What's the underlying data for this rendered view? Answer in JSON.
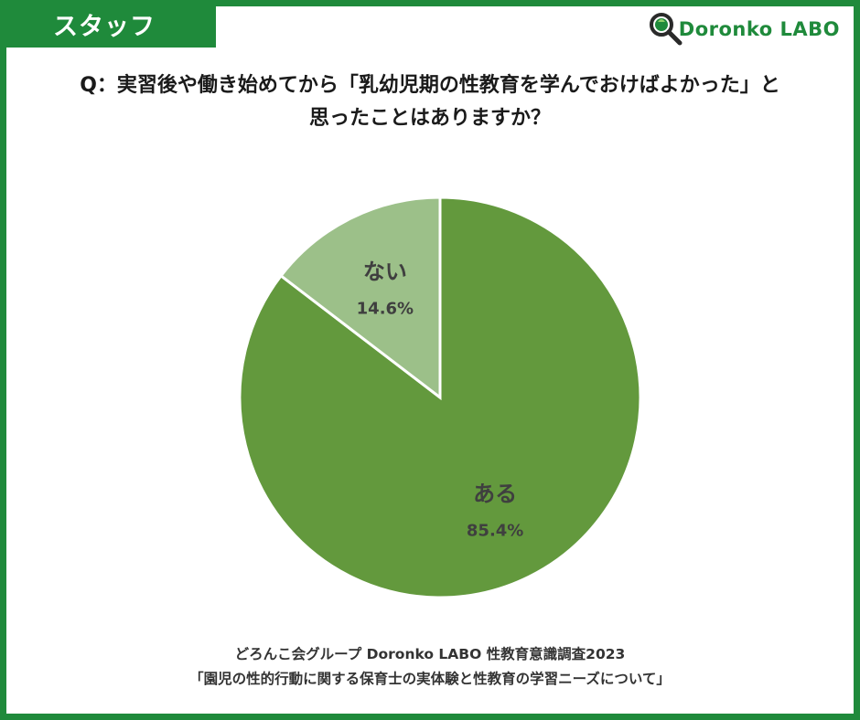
{
  "tag": "スタッフ",
  "logo": {
    "text": "Doronko LABO"
  },
  "question": {
    "line1": "Q：実習後や働き始めてから「乳幼児期の性教育を学んでおけばよかった」と",
    "line2": "思ったことはありますか？"
  },
  "chart_data": {
    "type": "pie",
    "categories": [
      "ある",
      "ない"
    ],
    "values": [
      85.4,
      14.6
    ],
    "value_labels": [
      "85.4%",
      "14.6%"
    ],
    "colors": [
      "#63993d",
      "#9cc089"
    ],
    "start": "12 o'clock, clockwise",
    "legend": "none"
  },
  "source": {
    "line1": "どろんこ会グループ Doronko LABO 性教育意識調査2023",
    "line2": "「園児の性的行動に関する保育士の実体験と性教育の学習ニーズについて」"
  },
  "colors": {
    "brand_green": "#1f8a3b",
    "label_text": "#3f3f3f"
  }
}
